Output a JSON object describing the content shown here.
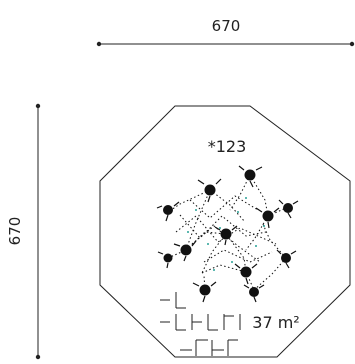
{
  "dimensions": {
    "width_label": "670",
    "depth_label": "670"
  },
  "plan": {
    "code_label": "*123",
    "area_label": "37 m²"
  }
}
